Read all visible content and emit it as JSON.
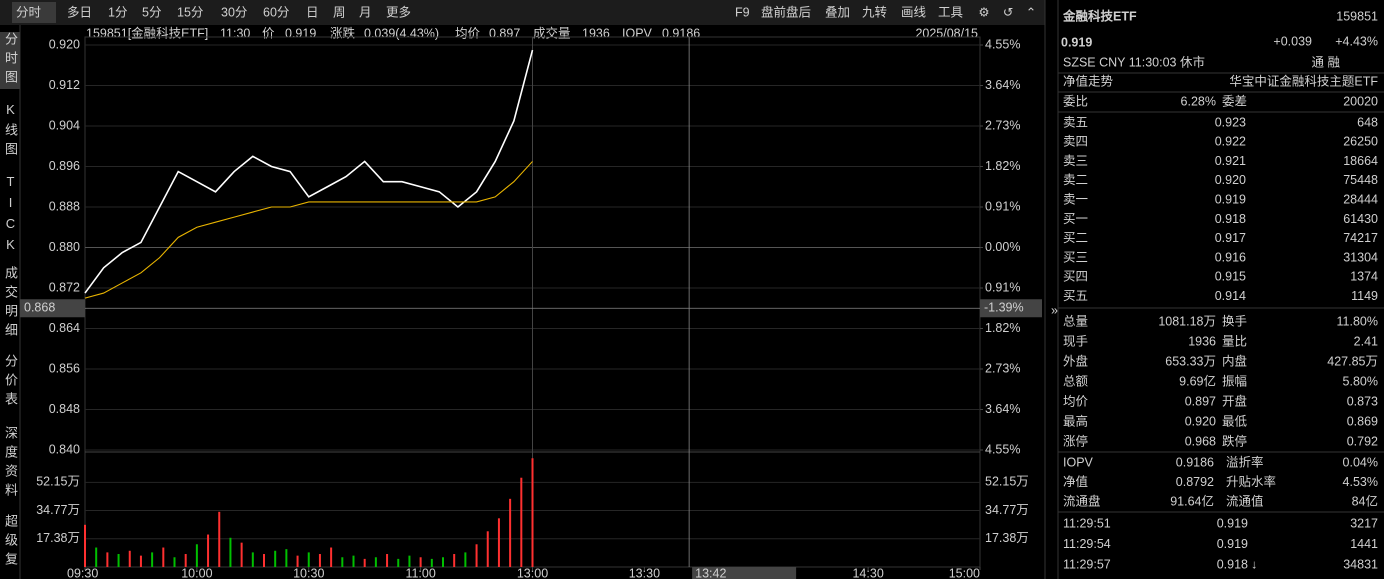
{
  "toolbar": {
    "tabs": [
      "分时",
      "多日",
      "1分",
      "5分",
      "15分",
      "30分",
      "60分",
      "日",
      "周",
      "月",
      "更多"
    ],
    "tools": [
      "F9",
      "盘前盘后",
      "叠加",
      "九转",
      "画线",
      "工具"
    ]
  },
  "sidebar": [
    "分时图",
    "K线图",
    "TICK",
    "成交明细",
    "分价表",
    "深度资料",
    "超级复"
  ],
  "info_bar": {
    "symbol": "159851[金融科技ETF]",
    "time": "11:30",
    "price_label": "价",
    "price": "0.919",
    "change_label": "涨跌",
    "change": "0.039(4.43%)",
    "avg_label": "均价",
    "avg": "0.897",
    "volume_label": "成交量",
    "volume": "1936",
    "iopv_label": "IOPV",
    "iopv": "0.9186",
    "date": "2025/08/15"
  },
  "chart_data": {
    "type": "line",
    "x": [
      0,
      5,
      10,
      15,
      20,
      25,
      30,
      35,
      40,
      45,
      50,
      55,
      60,
      65,
      70,
      75,
      80,
      85,
      90,
      95,
      100,
      105,
      110,
      115,
      120
    ],
    "xlim": [
      0,
      240
    ],
    "xticks": [
      {
        "value": 0,
        "label": "09:30"
      },
      {
        "value": 30,
        "label": "10:00"
      },
      {
        "value": 60,
        "label": "10:30"
      },
      {
        "value": 90,
        "label": "11:00"
      },
      {
        "value": 120,
        "label": "13:00"
      },
      {
        "value": 150,
        "label": "13:30"
      },
      {
        "value": 210,
        "label": "14:30"
      },
      {
        "value": 240,
        "label": "15:00"
      }
    ],
    "series": [
      {
        "name": "价",
        "color": "#ffffff",
        "values": [
          0.871,
          0.876,
          0.879,
          0.881,
          0.888,
          0.895,
          0.893,
          0.891,
          0.895,
          0.898,
          0.896,
          0.895,
          0.89,
          0.892,
          0.894,
          0.897,
          0.893,
          0.893,
          0.892,
          0.891,
          0.888,
          0.891,
          0.897,
          0.905,
          0.919
        ]
      },
      {
        "name": "均价",
        "color": "#e8b400",
        "values": [
          0.87,
          0.871,
          0.873,
          0.875,
          0.878,
          0.882,
          0.884,
          0.885,
          0.886,
          0.887,
          0.888,
          0.888,
          0.889,
          0.889,
          0.889,
          0.889,
          0.889,
          0.889,
          0.889,
          0.889,
          0.889,
          0.889,
          0.89,
          0.893,
          0.897
        ]
      }
    ],
    "ylim": [
      0.84,
      0.92
    ],
    "yticks": [
      {
        "value": 0.92,
        "label": "0.920"
      },
      0.912,
      0.904,
      0.896,
      0.888,
      {
        "value": 0.88,
        "label": "0.880"
      },
      0.872,
      0.864,
      0.856,
      0.848,
      {
        "value": 0.84,
        "label": "0.840"
      }
    ],
    "y2lim": [
      -4.55,
      4.55
    ],
    "y2ticks": [
      {
        "value": 4.55,
        "label": "4.55%"
      },
      {
        "value": 3.64,
        "label": "3.64%"
      },
      {
        "value": 2.73,
        "label": "2.73%"
      },
      {
        "value": 1.82,
        "label": "1.82%"
      },
      {
        "value": 0.91,
        "label": "0.91%"
      },
      {
        "value": 0,
        "label": "0.00%"
      },
      {
        "value": -0.91,
        "label": "0.91%"
      },
      {
        "value": -1.82,
        "label": "1.82%"
      },
      {
        "value": -2.73,
        "label": "2.73%"
      },
      {
        "value": -3.64,
        "label": "3.64%"
      },
      {
        "value": -4.55,
        "label": "4.55%"
      }
    ],
    "grid": true,
    "crosshair": {
      "price": {
        "value": 0.868,
        "label": "0.868"
      },
      "pct": {
        "value": -1.39,
        "label": "-1.39%"
      },
      "time": {
        "value": 162,
        "label": "13:42"
      }
    },
    "volume": {
      "ylim": [
        0,
        69
      ],
      "yticks": [
        {
          "value": 52.15,
          "label": "52.15万"
        },
        {
          "value": 34.77,
          "label": "34.77万"
        },
        {
          "value": 17.38,
          "label": "17.38万"
        }
      ],
      "x": [
        0,
        3,
        6,
        9,
        12,
        15,
        18,
        21,
        24,
        27,
        30,
        33,
        36,
        39,
        42,
        45,
        48,
        51,
        54,
        57,
        60,
        63,
        66,
        69,
        72,
        75,
        78,
        81,
        84,
        87,
        90,
        93,
        96,
        99,
        102,
        105,
        108,
        111,
        114,
        117,
        120
      ],
      "values": [
        26,
        12,
        9,
        8,
        10,
        7,
        9,
        12,
        6,
        8,
        14,
        20,
        34,
        18,
        15,
        9,
        8,
        10,
        11,
        7,
        9,
        8,
        12,
        6,
        7,
        5,
        6,
        8,
        5,
        7,
        6,
        5,
        6,
        8,
        9,
        14,
        22,
        30,
        42,
        55,
        67
      ],
      "colors": [
        "#ff3030",
        "#00c000",
        "#ff3030",
        "#00c000",
        "#ff3030",
        "#ff3030",
        "#00c000",
        "#ff3030",
        "#00c000",
        "#ff3030",
        "#00c000",
        "#ff3030",
        "#ff3030",
        "#00c000",
        "#ff3030",
        "#00c000",
        "#ff3030",
        "#00c000",
        "#00c000",
        "#ff3030",
        "#00c000",
        "#ff3030",
        "#ff3030",
        "#00c000",
        "#00c000",
        "#ff3030",
        "#00c000",
        "#ff3030",
        "#00c000",
        "#00c000",
        "#ff3030",
        "#00c000",
        "#00c000",
        "#ff3030",
        "#00c000",
        "#ff3030",
        "#ff3030",
        "#ff3030",
        "#ff3030",
        "#ff3030",
        "#ff3030"
      ]
    }
  },
  "quote": {
    "name": "金融科技ETF",
    "code": "159851",
    "price": "0.919",
    "change": "+0.039",
    "pct": "+4.43%",
    "status": "SZSE  CNY  11:30:03  休市",
    "flags": "通  融",
    "nav_label": "净值走势",
    "index_name": "华宝中证金融科技主题ETF",
    "ratio": [
      {
        "label": "委比",
        "value": "6.28%",
        "color": "#ff3030"
      },
      {
        "label": "委差",
        "value": "20020",
        "color": "#ff3030"
      }
    ],
    "book": [
      {
        "label": "卖五",
        "price": "0.923",
        "vol": "648"
      },
      {
        "label": "卖四",
        "price": "0.922",
        "vol": "26250"
      },
      {
        "label": "卖三",
        "price": "0.921",
        "vol": "18664"
      },
      {
        "label": "卖二",
        "price": "0.920",
        "vol": "75448"
      },
      {
        "label": "卖一",
        "price": "0.919",
        "vol": "28444"
      },
      {
        "label": "买一",
        "price": "0.918",
        "vol": "61430"
      },
      {
        "label": "买二",
        "price": "0.917",
        "vol": "74217"
      },
      {
        "label": "买三",
        "price": "0.916",
        "vol": "31304"
      },
      {
        "label": "买四",
        "price": "0.915",
        "vol": "1374"
      },
      {
        "label": "买五",
        "price": "0.914",
        "vol": "1149"
      }
    ],
    "stats": [
      [
        {
          "label": "总量",
          "value": "1081.18万",
          "color": "#e0e0e0"
        },
        {
          "label": "换手",
          "value": "11.80%",
          "color": "#e0e0e0"
        }
      ],
      [
        {
          "label": "现手",
          "value": "1936",
          "color": "#e0e0e0"
        },
        {
          "label": "量比",
          "value": "2.41",
          "color": "#e0e0e0"
        }
      ],
      [
        {
          "label": "外盘",
          "value": "653.33万",
          "color": "#ff3030"
        },
        {
          "label": "内盘",
          "value": "427.85万",
          "color": "#00c000"
        }
      ],
      [
        {
          "label": "总额",
          "value": "9.69亿",
          "color": "#e0e0e0"
        },
        {
          "label": "振幅",
          "value": "5.80%",
          "color": "#e0e0e0"
        }
      ],
      [
        {
          "label": "均价",
          "value": "0.897",
          "color": "#ff3030"
        },
        {
          "label": "开盘",
          "value": "0.873",
          "color": "#00c000"
        }
      ],
      [
        {
          "label": "最高",
          "value": "0.920",
          "color": "#ff3030"
        },
        {
          "label": "最低",
          "value": "0.869",
          "color": "#00c000"
        }
      ],
      [
        {
          "label": "涨停",
          "value": "0.968",
          "color": "#ff3030"
        },
        {
          "label": "跌停",
          "value": "0.792",
          "color": "#00c000"
        }
      ]
    ],
    "stats2": [
      [
        {
          "label": "IOPV",
          "value": "0.9186",
          "color": "#e0e0e0"
        },
        {
          "label": "溢折率",
          "value": "0.04%",
          "color": "#ff3030"
        }
      ],
      [
        {
          "label": "净值",
          "value": "0.8792",
          "color": "#ff3030"
        },
        {
          "label": "升贴水率",
          "value": "4.53%",
          "color": "#ff3030"
        }
      ],
      [
        {
          "label": "流通盘",
          "value": "91.64亿",
          "color": "#e0e0e0"
        },
        {
          "label": "流通值",
          "value": "84亿",
          "color": "#e0e0e0"
        }
      ]
    ],
    "trades": [
      {
        "time": "11:29:51",
        "price": "0.919",
        "vol": "3217",
        "vol_color": "#ff3030"
      },
      {
        "time": "11:29:54",
        "price": "0.919",
        "vol": "1441",
        "vol_color": "#00c000"
      },
      {
        "time": "11:29:57",
        "price": "0.918",
        "vol": "34831",
        "vol_color": "#00c000"
      }
    ]
  }
}
